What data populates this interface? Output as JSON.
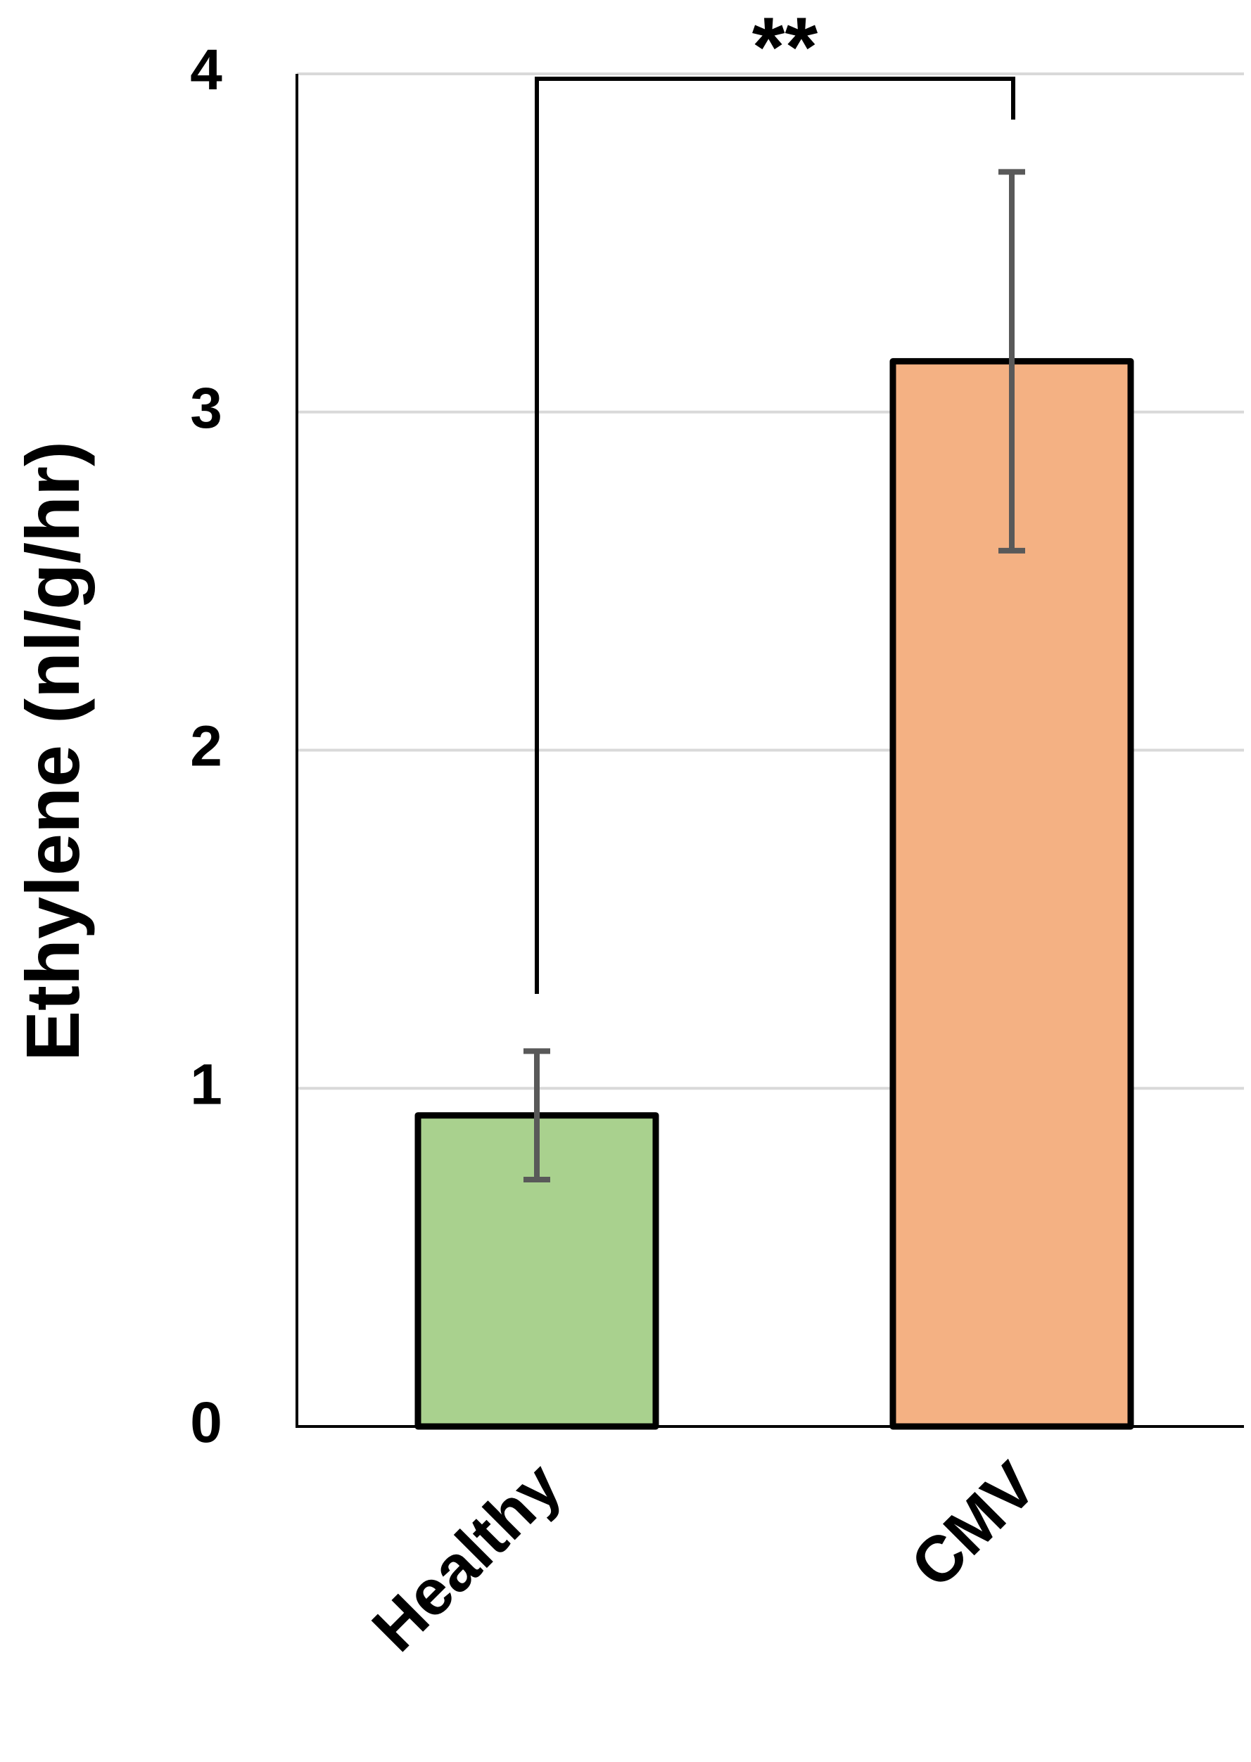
{
  "chart_data": {
    "type": "bar",
    "categories": [
      "Healthy",
      "CMV"
    ],
    "values": [
      0.92,
      3.15
    ],
    "error": [
      0.19,
      0.56
    ],
    "ylabel": "Ethylene (nl/g/hr)",
    "xlabel": "",
    "ylim": [
      0,
      4
    ],
    "yticks": [
      0,
      1,
      2,
      3,
      4
    ],
    "grid": true,
    "bar_colors": [
      "#a9d18e",
      "#f4b183"
    ],
    "bar_edge_color": "#000000",
    "error_bar_color": "#595959",
    "grid_color": "#d9d9d9",
    "significance": {
      "label": "**",
      "between": [
        "Healthy",
        "CMV"
      ]
    }
  }
}
